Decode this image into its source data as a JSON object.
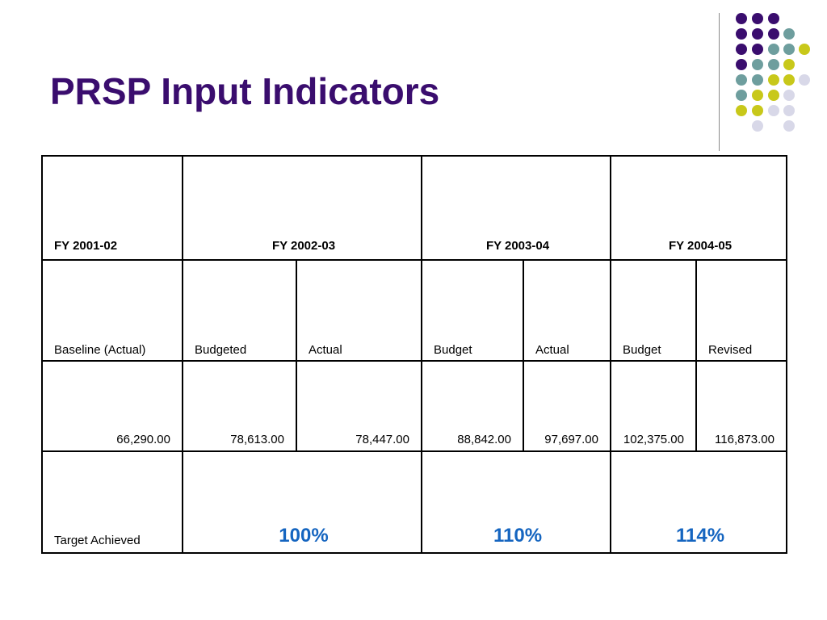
{
  "slide": {
    "title": "PRSP Input Indicators"
  },
  "colors": {
    "title": "#3a0d6e",
    "purple_dot": "#3a0d6e",
    "teal_dot": "#6e9e9e",
    "yellow_dot": "#c8c81a",
    "lavender_dot": "#d8d8e8",
    "percent_text": "#1565c0"
  },
  "table": {
    "header": {
      "fy1": "FY 2001-02",
      "fy2": "FY 2002-03",
      "fy3": "FY 2003-04",
      "fy4": "FY 2004-05"
    },
    "subheader": {
      "baseline": "Baseline (Actual)",
      "fy2_budgeted": "Budgeted",
      "fy2_actual": "Actual",
      "fy3_budget": "Budget",
      "fy3_actual": "Actual",
      "fy4_budget": "Budget",
      "fy4_revised": "Revised"
    },
    "values": {
      "baseline": "66,290.00",
      "fy2_budgeted": "78,613.00",
      "fy2_actual": "78,447.00",
      "fy3_budget": "88,842.00",
      "fy3_actual": "97,697.00",
      "fy4_budget": "102,375.00",
      "fy4_revised": "116,873.00"
    },
    "target": {
      "label": "Target Achieved",
      "fy2": "100%",
      "fy3": "110%",
      "fy4": "114%"
    }
  }
}
